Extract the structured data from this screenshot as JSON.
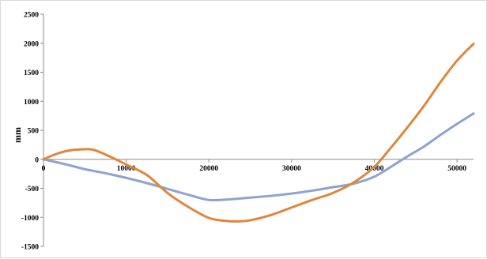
{
  "chart_data": {
    "type": "line",
    "title": "",
    "xlabel": "",
    "ylabel": "mm",
    "xlim": [
      0,
      52000
    ],
    "ylim": [
      -1500,
      2500
    ],
    "x_ticks": [
      0,
      10000,
      20000,
      30000,
      40000,
      50000
    ],
    "y_ticks": [
      2500,
      2000,
      1500,
      1000,
      500,
      0,
      -500,
      -1000,
      -1500
    ],
    "x_tick_labels": [
      "0",
      "10000",
      "20000",
      "30000",
      "40000",
      "50000"
    ],
    "y_tick_labels": [
      "2500",
      "2000",
      "1500",
      "1000",
      "500",
      "0",
      "-500",
      "-1000",
      "-1500"
    ],
    "grid": false,
    "legend": "none",
    "series": [
      {
        "color": "#e0863a",
        "x": [
          0,
          1500,
          3000,
          4500,
          6000,
          8000,
          10000,
          12500,
          15000,
          17500,
          20000,
          22000,
          23500,
          25000,
          27500,
          30000,
          32500,
          35000,
          37500,
          40000,
          42000,
          44000,
          46000,
          48000,
          50000,
          52000
        ],
        "y": [
          0,
          90,
          150,
          170,
          165,
          50,
          -90,
          -270,
          -580,
          -820,
          -1010,
          -1060,
          -1070,
          -1050,
          -960,
          -830,
          -700,
          -580,
          -400,
          -130,
          200,
          550,
          920,
          1330,
          1700,
          1990
        ]
      },
      {
        "color": "#8fa3cf",
        "x": [
          0,
          2500,
          5000,
          7500,
          10000,
          12500,
          15000,
          17500,
          20000,
          22500,
          25000,
          27500,
          30000,
          32500,
          35000,
          37500,
          40000,
          42000,
          44000,
          46000,
          48000,
          50000,
          52000
        ],
        "y": [
          0,
          -80,
          -170,
          -240,
          -320,
          -410,
          -510,
          -610,
          -700,
          -690,
          -660,
          -630,
          -590,
          -540,
          -480,
          -420,
          -300,
          -130,
          50,
          220,
          420,
          610,
          790
        ]
      }
    ]
  }
}
